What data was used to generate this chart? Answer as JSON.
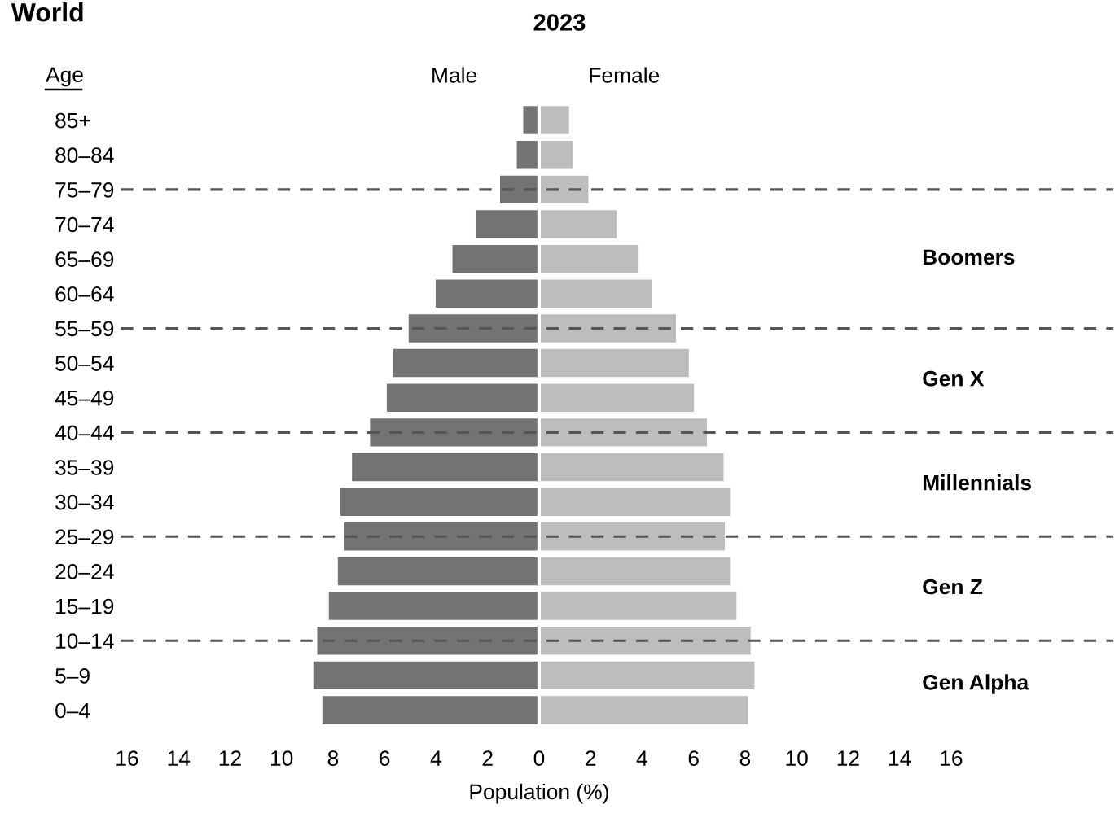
{
  "chart_data": {
    "type": "bar",
    "orientation": "horizontal",
    "title": "World",
    "subtitle": "2023",
    "xlabel": "Population (%)",
    "ylabel": "Age",
    "categories": [
      "85+",
      "80–84",
      "75–79",
      "70–74",
      "65–69",
      "60–64",
      "55–59",
      "50–54",
      "45–49",
      "40–44",
      "35–39",
      "30–34",
      "25–29",
      "20–24",
      "15–19",
      "10–14",
      "5–9",
      "0–4"
    ],
    "series": [
      {
        "name": "Male",
        "color": "#737373",
        "values": [
          -0.65,
          -0.9,
          -1.55,
          -2.5,
          -3.4,
          -4.05,
          -5.1,
          -5.7,
          -5.95,
          -6.6,
          -7.3,
          -7.75,
          -7.6,
          -7.85,
          -8.2,
          -8.65,
          -8.8,
          -8.45
        ]
      },
      {
        "name": "Female",
        "color": "#bdbdbd",
        "values": [
          1.2,
          1.35,
          1.95,
          3.05,
          3.9,
          4.4,
          5.35,
          5.85,
          6.05,
          6.55,
          7.2,
          7.45,
          7.25,
          7.45,
          7.7,
          8.25,
          8.4,
          8.15
        ]
      }
    ],
    "xlim": [
      -16,
      16
    ],
    "xticks": [
      {
        "value": -16,
        "label": "16"
      },
      {
        "value": -14,
        "label": "14"
      },
      {
        "value": -12,
        "label": "12"
      },
      {
        "value": -10,
        "label": "10"
      },
      {
        "value": -8,
        "label": "8"
      },
      {
        "value": -6,
        "label": "6"
      },
      {
        "value": -4,
        "label": "4"
      },
      {
        "value": -2,
        "label": "2"
      },
      0,
      2,
      4,
      6,
      8,
      10,
      12,
      14,
      16
    ],
    "ref_lines": [
      {
        "axis": "y",
        "value": "75–79",
        "color": "#555555",
        "line_style": "dashed"
      },
      {
        "axis": "y",
        "value": "55–59",
        "color": "#555555",
        "line_style": "dashed"
      },
      {
        "axis": "y",
        "value": "40–44",
        "color": "#555555",
        "line_style": "dashed"
      },
      {
        "axis": "y",
        "value": "25–29",
        "color": "#555555",
        "line_style": "dashed"
      },
      {
        "axis": "y",
        "value": "10–14",
        "color": "#555555",
        "line_style": "dashed"
      }
    ],
    "annotations": [
      "Boomers",
      "Gen X",
      "Millennials",
      "Gen Z",
      "Gen Alpha"
    ],
    "stacked": true,
    "grid": false,
    "legend": false
  }
}
